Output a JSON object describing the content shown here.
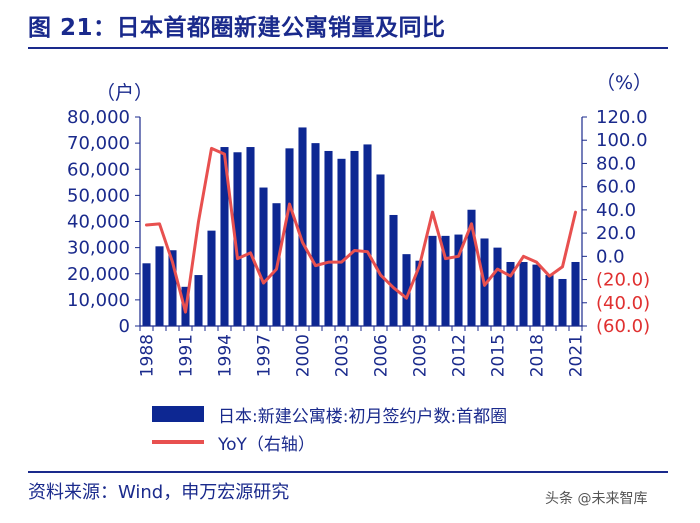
{
  "figure": {
    "title": "图 21：日本首都圈新建公寓销量及同比",
    "source": "资料来源：Wind，申万宏源研究",
    "watermark": "头条 @未来智库"
  },
  "chart_data": {
    "type": "bar+line",
    "x": [
      1988,
      1989,
      1990,
      1991,
      1992,
      1993,
      1994,
      1995,
      1996,
      1997,
      1998,
      1999,
      2000,
      2001,
      2002,
      2003,
      2004,
      2005,
      2006,
      2007,
      2008,
      2009,
      2010,
      2011,
      2012,
      2013,
      2014,
      2015,
      2016,
      2017,
      2018,
      2019,
      2020,
      2021
    ],
    "x_tick_labels": [
      "1988",
      "1991",
      "1994",
      "1997",
      "2000",
      "2003",
      "2006",
      "2009",
      "2012",
      "2015",
      "2018",
      "2021"
    ],
    "series": [
      {
        "name": "日本:新建公寓楼:初月签约户数:首都圈",
        "type": "bar",
        "axis": "left",
        "color": "#0d2792",
        "values": [
          24000,
          30500,
          29000,
          15000,
          19500,
          36500,
          68500,
          66500,
          68500,
          53000,
          47000,
          68000,
          76000,
          70000,
          67000,
          64000,
          67000,
          69500,
          58000,
          42500,
          27500,
          25000,
          34500,
          34500,
          35000,
          44500,
          33500,
          30000,
          24500,
          24500,
          23500,
          19500,
          18000,
          24500
        ]
      },
      {
        "name": "YoY（右轴）",
        "type": "line",
        "axis": "right",
        "color": "#e8504f",
        "values": [
          27,
          28,
          -5,
          -48,
          30,
          93,
          88,
          -2,
          3,
          -23,
          -11,
          45,
          12,
          -8,
          -5,
          -5,
          5,
          4,
          -16,
          -27,
          -36,
          -8,
          38,
          -2,
          0,
          28,
          -25,
          -11,
          -17,
          0,
          -5,
          -17,
          -9,
          38
        ]
      }
    ],
    "left_axis": {
      "unit": "（户）",
      "min": 0,
      "max": 80000,
      "ticks": [
        "0",
        "10,000",
        "20,000",
        "30,000",
        "40,000",
        "50,000",
        "60,000",
        "70,000",
        "80,000"
      ]
    },
    "right_axis": {
      "unit": "（%）",
      "min": -60,
      "max": 120,
      "ticks": [
        "(60.0)",
        "(40.0)",
        "(20.0)",
        "0.0",
        "20.0",
        "40.0",
        "60.0",
        "80.0",
        "100.0",
        "120.0"
      ]
    },
    "legend": [
      "日本:新建公寓楼:初月签约户数:首都圈",
      "YoY（右轴）"
    ]
  },
  "colors": {
    "accent": "#1a2a8c",
    "bar": "#0d2792",
    "line": "#e8504f",
    "negative_tick": "#e03030"
  }
}
